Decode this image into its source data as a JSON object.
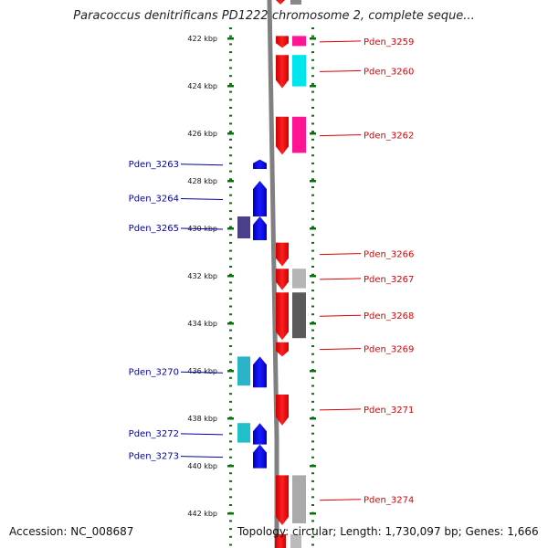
{
  "title": "Paracoccus denitrificans PD1222 chromosome 2, complete seque...",
  "footer": {
    "accession": "Accession: NC_008687",
    "topology": "Topology: circular; Length: 1,730,097 bp; Genes: 1,666"
  },
  "colors": {
    "forward_label": "#dd0000",
    "reverse_label": "#0000aa",
    "tick": "#007700",
    "backbone": "#808080"
  },
  "scale_ticks": [
    {
      "label": "422 kbp",
      "kbp": 422
    },
    {
      "label": "424 kbp",
      "kbp": 424
    },
    {
      "label": "426 kbp",
      "kbp": 426
    },
    {
      "label": "428 kbp",
      "kbp": 428
    },
    {
      "label": "430 kbp",
      "kbp": 430
    },
    {
      "label": "432 kbp",
      "kbp": 432
    },
    {
      "label": "434 kbp",
      "kbp": 434
    },
    {
      "label": "436 kbp",
      "kbp": 436
    },
    {
      "label": "438 kbp",
      "kbp": 438
    },
    {
      "label": "440 kbp",
      "kbp": 440
    },
    {
      "label": "442 kbp",
      "kbp": 442
    }
  ],
  "genes": [
    {
      "name": "Pden_3259",
      "strand": "+",
      "start_kbp": 421.9,
      "end_kbp": 422.4,
      "cog_color": "#ff1493"
    },
    {
      "name": "Pden_3260",
      "strand": "+",
      "start_kbp": 422.7,
      "end_kbp": 424.1,
      "cog_color": "#00e5ee"
    },
    {
      "name": "Pden_3262",
      "strand": "+",
      "start_kbp": 425.3,
      "end_kbp": 426.9,
      "cog_color": "#ff1493"
    },
    {
      "name": "Pden_3263",
      "strand": "-",
      "start_kbp": 427.1,
      "end_kbp": 427.5,
      "cog_color": null
    },
    {
      "name": "Pden_3264",
      "strand": "-",
      "start_kbp": 428.0,
      "end_kbp": 429.5,
      "cog_color": null
    },
    {
      "name": "Pden_3265",
      "strand": "-",
      "start_kbp": 429.5,
      "end_kbp": 430.5,
      "cog_color": "#4a3f8a"
    },
    {
      "name": "Pden_3266",
      "strand": "+",
      "start_kbp": 430.6,
      "end_kbp": 431.6,
      "cog_color": null
    },
    {
      "name": "Pden_3267",
      "strand": "+",
      "start_kbp": 431.7,
      "end_kbp": 432.6,
      "cog_color": "#b5b5b5"
    },
    {
      "name": "Pden_3268",
      "strand": "+",
      "start_kbp": 432.7,
      "end_kbp": 434.7,
      "cog_color": "#5a5a5a"
    },
    {
      "name": "Pden_3269",
      "strand": "+",
      "start_kbp": 434.8,
      "end_kbp": 435.4,
      "cog_color": null
    },
    {
      "name": "Pden_3270",
      "strand": "-",
      "start_kbp": 435.4,
      "end_kbp": 436.7,
      "cog_color": "#2bb3c7"
    },
    {
      "name": "Pden_3271",
      "strand": "+",
      "start_kbp": 437.0,
      "end_kbp": 438.3,
      "cog_color": null
    },
    {
      "name": "Pden_3272",
      "strand": "-",
      "start_kbp": 438.2,
      "end_kbp": 439.1,
      "cog_color": "#20c0c8"
    },
    {
      "name": "Pden_3273",
      "strand": "-",
      "start_kbp": 439.1,
      "end_kbp": 440.1,
      "cog_color": null
    },
    {
      "name": "Pden_3274",
      "strand": "+",
      "start_kbp": 440.4,
      "end_kbp": 442.5,
      "cog_color": "#aaaaaa"
    }
  ]
}
